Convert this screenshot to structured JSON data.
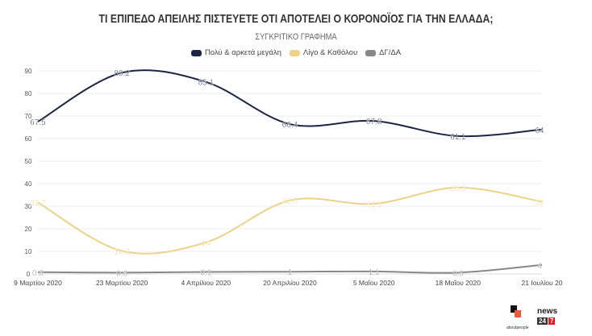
{
  "title": "ΤΙ ΕΠΙΠΕΔΟ ΑΠΕΙΛΗΣ ΠΙΣΤΕΥΕΤΕ ΟΤΙ ΑΠΟΤΕΛΕΙ Ο ΚΟΡΟΝΟΪΟΣ ΓΙΑ ΤΗΝ ΕΛΛΑΔΑ;",
  "subtitle": "ΣΥΓΚΡΙΤΙΚΟ ΓΡΑΦΗΜΑ",
  "logos": {
    "left": "aboutpeople",
    "right_top": "news",
    "right_num1": "24",
    "right_num2": "7"
  },
  "chart_data": {
    "type": "line",
    "title": "ΤΙ ΕΠΙΠΕΔΟ ΑΠΕΙΛΗΣ ΠΙΣΤΕΥΕΤΕ ΟΤΙ ΑΠΟΤΕΛΕΙ Ο ΚΟΡΟΝΟΪΟΣ ΓΙΑ ΤΗΝ ΕΛΛΑΔΑ;",
    "subtitle": "ΣΥΓΚΡΙΤΙΚΟ ΓΡΑΦΗΜΑ",
    "categories": [
      "9 Μαρτίου 2020",
      "23 Μαρτίου 2020",
      "4 Απρίλιου 2020",
      "20 Απριλίου 2020",
      "5 Μαΐου 2020",
      "18 Μαΐου 2020",
      "21 Ιουλίου 20"
    ],
    "yticks": [
      0,
      10,
      20,
      30,
      40,
      50,
      60,
      70,
      80,
      90
    ],
    "ylim": [
      0,
      90
    ],
    "grid": true,
    "legend_position": "top",
    "series": [
      {
        "name": "Πολύ & αρκετά μεγάλη",
        "color": "#1b2544",
        "values": [
          67.5,
          89.2,
          85.1,
          66.4,
          67.8,
          61.1,
          64
        ],
        "labels": [
          "67.5",
          "89.2",
          "85.1",
          "66.4",
          "67.8",
          "61.1",
          "64"
        ]
      },
      {
        "name": "Λίγο & Καθόλου",
        "color": "#ecd28a",
        "values": [
          31.7,
          10.2,
          14,
          32.6,
          31.1,
          38.3,
          32
        ],
        "labels": [
          "31.7",
          "10.2",
          "14",
          "32.6",
          "31.1",
          "38.3",
          "32"
        ]
      },
      {
        "name": "ΔΓ/ΔΑ",
        "color": "#888888",
        "values": [
          0.8,
          0.6,
          0.9,
          1,
          1.1,
          0.6,
          4
        ],
        "labels": [
          "0.8",
          "0.6",
          "0.9",
          "1",
          "1.1",
          "0.6",
          "4"
        ]
      }
    ]
  }
}
